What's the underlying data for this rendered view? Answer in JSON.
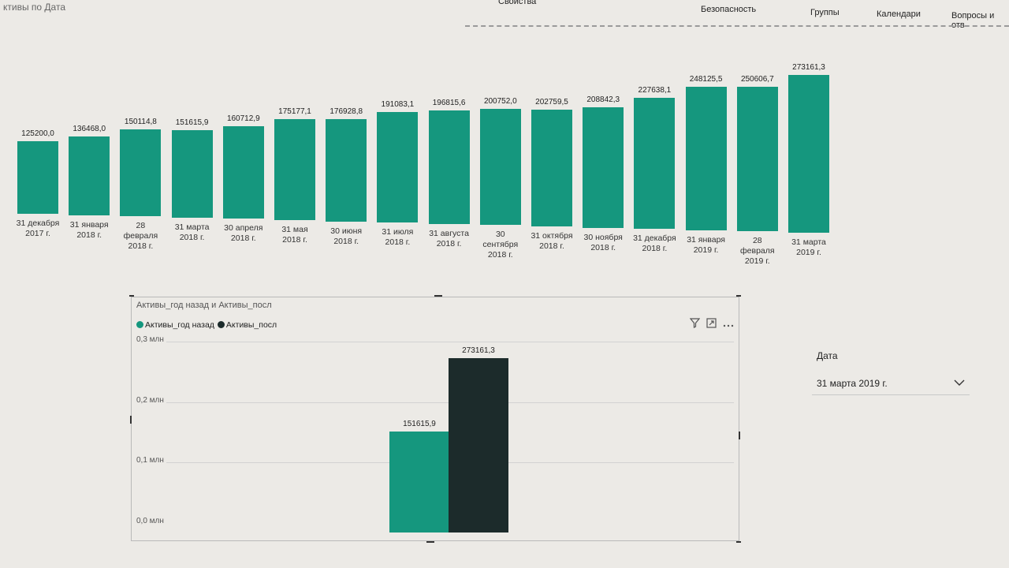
{
  "page": {
    "title": "ктивы по Дата"
  },
  "ribbon": {
    "items": [
      {
        "id": "props",
        "label": "Свойства"
      },
      {
        "id": "security",
        "label": "Безопасность"
      },
      {
        "id": "groups",
        "label": "Группы"
      },
      {
        "id": "calendars",
        "label": "Календари"
      },
      {
        "id": "qa",
        "label": "Вопросы и отв"
      }
    ]
  },
  "chart_data": [
    {
      "type": "bar",
      "title": "ктивы по Дата",
      "categories": [
        "31 декабря 2017 г.",
        "31 января 2018 г.",
        "28 февраля 2018 г.",
        "31 марта 2018 г.",
        "30 апреля 2018 г.",
        "31 мая 2018 г.",
        "30 июня 2018 г.",
        "31 июля 2018 г.",
        "31 августа 2018 г.",
        "30 сентября 2018 г.",
        "31 октября 2018 г.",
        "30 ноября 2018 г.",
        "31 декабря 2018 г.",
        "31 января 2019 г.",
        "28 февраля 2019 г.",
        "31 марта 2019 г."
      ],
      "category_lines": [
        [
          "31 декабря",
          "2017 г."
        ],
        [
          "31 января",
          "2018 г."
        ],
        [
          "28",
          "февраля",
          "2018 г."
        ],
        [
          "31 марта",
          "2018 г."
        ],
        [
          "30 апреля",
          "2018 г."
        ],
        [
          "31 мая",
          "2018 г."
        ],
        [
          "30 июня",
          "2018 г."
        ],
        [
          "31 июля",
          "2018 г."
        ],
        [
          "31 августа",
          "2018 г."
        ],
        [
          "30",
          "сентября",
          "2018 г."
        ],
        [
          "31 октября",
          "2018 г."
        ],
        [
          "30 ноября",
          "2018 г."
        ],
        [
          "31 декабря",
          "2018 г."
        ],
        [
          "31 января",
          "2019 г."
        ],
        [
          "28",
          "февраля",
          "2019 г."
        ],
        [
          "31 марта",
          "2019 г."
        ]
      ],
      "values": [
        125200.0,
        136468.0,
        150114.8,
        151615.9,
        160712.9,
        175177.1,
        176928.8,
        191083.1,
        196815.6,
        200752.0,
        202759.5,
        208842.3,
        227638.1,
        248125.5,
        250606.7,
        273161.3
      ],
      "value_labels": [
        "125200,0",
        "136468,0",
        "150114,8",
        "151615,9",
        "160712,9",
        "175177,1",
        "176928,8",
        "191083,1",
        "196815,6",
        "200752,0",
        "202759,5",
        "208842,3",
        "227638,1",
        "248125,5",
        "250606,7",
        "273161,3"
      ],
      "color": "#15977e"
    },
    {
      "type": "bar",
      "title": "Активы_год назад и Активы_посл",
      "categories": [
        ""
      ],
      "series": [
        {
          "name": "Активы_год назад",
          "values": [
            151615.9
          ],
          "label": "151615,9",
          "color": "#15977e"
        },
        {
          "name": "Активы_посл",
          "values": [
            273161.3
          ],
          "label": "273161,3",
          "color": "#1c2b2b"
        }
      ],
      "yticks": [
        "0,0 млн",
        "0,1 млн",
        "0,2 млн",
        "0,3 млн"
      ],
      "ylim": [
        0,
        300000
      ],
      "legend": "top-left"
    }
  ],
  "slicer": {
    "label": "Дата",
    "value": "31 марта 2019 г."
  },
  "icons": {
    "filter": "filter-icon",
    "focus": "focus-mode-icon",
    "more": "more-options-icon",
    "chevron": "chevron-down-icon"
  }
}
